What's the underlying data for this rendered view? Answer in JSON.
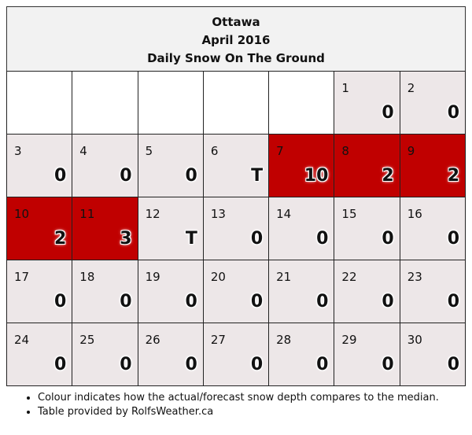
{
  "header": {
    "city": "Ottawa",
    "month": "April 2016",
    "metric": "Daily Snow On The Ground"
  },
  "colors": {
    "above_median": "#c00000",
    "normal": "#ede7e8",
    "empty": "#ffffff"
  },
  "weeks": [
    [
      {
        "day": "",
        "value": "",
        "status": "empty"
      },
      {
        "day": "",
        "value": "",
        "status": "empty"
      },
      {
        "day": "",
        "value": "",
        "status": "empty"
      },
      {
        "day": "",
        "value": "",
        "status": "empty"
      },
      {
        "day": "",
        "value": "",
        "status": "empty"
      },
      {
        "day": "1",
        "value": "0",
        "status": "normal"
      },
      {
        "day": "2",
        "value": "0",
        "status": "normal"
      }
    ],
    [
      {
        "day": "3",
        "value": "0",
        "status": "normal"
      },
      {
        "day": "4",
        "value": "0",
        "status": "normal"
      },
      {
        "day": "5",
        "value": "0",
        "status": "normal"
      },
      {
        "day": "6",
        "value": "T",
        "status": "normal"
      },
      {
        "day": "7",
        "value": "10",
        "status": "red"
      },
      {
        "day": "8",
        "value": "2",
        "status": "red"
      },
      {
        "day": "9",
        "value": "2",
        "status": "red"
      }
    ],
    [
      {
        "day": "10",
        "value": "2",
        "status": "red"
      },
      {
        "day": "11",
        "value": "3",
        "status": "red"
      },
      {
        "day": "12",
        "value": "T",
        "status": "normal"
      },
      {
        "day": "13",
        "value": "0",
        "status": "normal"
      },
      {
        "day": "14",
        "value": "0",
        "status": "normal"
      },
      {
        "day": "15",
        "value": "0",
        "status": "normal"
      },
      {
        "day": "16",
        "value": "0",
        "status": "normal"
      }
    ],
    [
      {
        "day": "17",
        "value": "0",
        "status": "normal"
      },
      {
        "day": "18",
        "value": "0",
        "status": "normal"
      },
      {
        "day": "19",
        "value": "0",
        "status": "normal"
      },
      {
        "day": "20",
        "value": "0",
        "status": "normal"
      },
      {
        "day": "21",
        "value": "0",
        "status": "normal"
      },
      {
        "day": "22",
        "value": "0",
        "status": "normal"
      },
      {
        "day": "23",
        "value": "0",
        "status": "normal"
      }
    ],
    [
      {
        "day": "24",
        "value": "0",
        "status": "normal"
      },
      {
        "day": "25",
        "value": "0",
        "status": "normal"
      },
      {
        "day": "26",
        "value": "0",
        "status": "normal"
      },
      {
        "day": "27",
        "value": "0",
        "status": "normal"
      },
      {
        "day": "28",
        "value": "0",
        "status": "normal"
      },
      {
        "day": "29",
        "value": "0",
        "status": "normal"
      },
      {
        "day": "30",
        "value": "0",
        "status": "normal"
      }
    ]
  ],
  "notes": [
    "Colour indicates how the actual/forecast snow depth compares to the median.",
    "Table provided by RolfsWeather.ca"
  ]
}
